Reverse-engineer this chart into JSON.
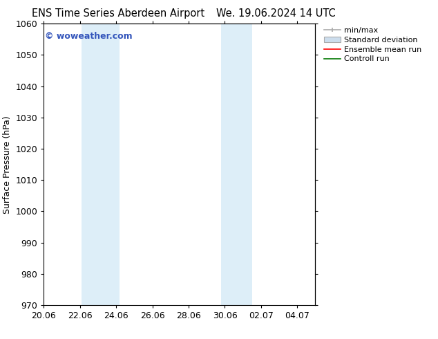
{
  "title_left": "ENS Time Series Aberdeen Airport",
  "title_right": "We. 19.06.2024 14 UTC",
  "ylabel": "Surface Pressure (hPa)",
  "ylim": [
    970,
    1060
  ],
  "yticks": [
    970,
    980,
    990,
    1000,
    1010,
    1020,
    1030,
    1040,
    1050,
    1060
  ],
  "xlim": [
    0,
    15
  ],
  "xtick_labels": [
    "20.06",
    "22.06",
    "24.06",
    "26.06",
    "28.06",
    "30.06",
    "02.07",
    "04.07"
  ],
  "xtick_positions_days": [
    0,
    2,
    4,
    6,
    8,
    10,
    12,
    14
  ],
  "shaded_regions": [
    {
      "start_day": 2.1,
      "end_day": 4.2,
      "color": "#ddeef8"
    },
    {
      "start_day": 9.8,
      "end_day": 11.5,
      "color": "#ddeef8"
    }
  ],
  "watermark_text": "© woweather.com",
  "watermark_color": "#3355bb",
  "bg_color": "#ffffff",
  "plot_bg_color": "#ffffff",
  "font_size": 9,
  "title_font_size": 10.5
}
